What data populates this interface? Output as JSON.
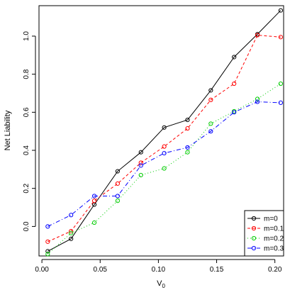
{
  "chart_data": {
    "type": "line",
    "xlabel": "V",
    "xlabel_sub": "0",
    "ylabel": "Net Liability",
    "xlim": [
      -0.0025,
      0.2075
    ],
    "ylim": [
      -0.155,
      1.16
    ],
    "x_ticks": [
      {
        "value": 0.0,
        "label": "0.00"
      },
      {
        "value": 0.05,
        "label": "0.05"
      },
      {
        "value": 0.1,
        "label": "0.10"
      },
      {
        "value": 0.15,
        "label": "0.15"
      },
      {
        "value": 0.2,
        "label": "0.20"
      }
    ],
    "y_ticks": [
      {
        "value": 0.0,
        "label": "0.0"
      },
      {
        "value": 0.2,
        "label": "0.2"
      },
      {
        "value": 0.4,
        "label": "0.4"
      },
      {
        "value": 0.6,
        "label": "0.6"
      },
      {
        "value": 0.8,
        "label": "0.8"
      },
      {
        "value": 1.0,
        "label": "1.0"
      }
    ],
    "x": [
      0.005,
      0.025,
      0.045,
      0.065,
      0.085,
      0.105,
      0.125,
      0.145,
      0.165,
      0.185,
      0.205
    ],
    "series": [
      {
        "name": "m=0",
        "color": "#000000",
        "dash": "none",
        "values": [
          -0.13,
          -0.065,
          0.115,
          0.29,
          0.39,
          0.52,
          0.56,
          0.715,
          0.89,
          1.01,
          1.135
        ]
      },
      {
        "name": "m=0.1",
        "color": "#ff0000",
        "dash": "4,3",
        "values": [
          -0.08,
          -0.025,
          0.135,
          0.225,
          0.335,
          0.42,
          0.515,
          0.665,
          0.75,
          1.005,
          0.995
        ]
      },
      {
        "name": "m=0.2",
        "color": "#00cc00",
        "dash": "1,3",
        "values": [
          -0.145,
          -0.035,
          0.02,
          0.135,
          0.27,
          0.305,
          0.39,
          0.54,
          0.605,
          0.67,
          0.75
        ]
      },
      {
        "name": "m=0.3",
        "color": "#0000ff",
        "dash": "6,3,1,3",
        "values": [
          0.0,
          0.06,
          0.16,
          0.16,
          0.32,
          0.385,
          0.415,
          0.5,
          0.6,
          0.655,
          0.65
        ]
      }
    ],
    "legend_position": "bottom-right",
    "grid": false
  }
}
